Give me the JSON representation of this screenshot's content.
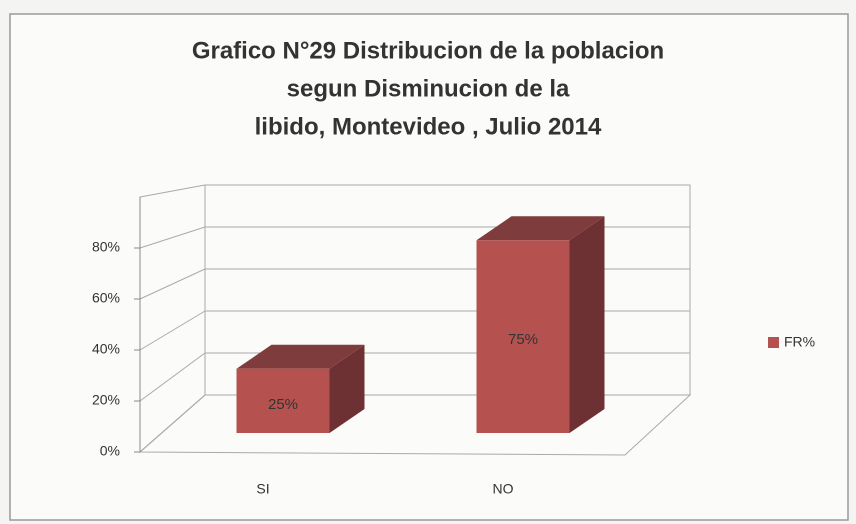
{
  "chart_data": {
    "type": "bar3d",
    "title": [
      "Grafico N°29 Distribucion de la poblacion",
      "segun Disminucion de la",
      "libido, Montevideo , Julio 2014"
    ],
    "categories": [
      "SI",
      "NO"
    ],
    "series": [
      {
        "name": "FR%",
        "color": "#b5524f",
        "values": [
          25,
          75
        ],
        "value_labels": [
          "25%",
          "75%"
        ]
      }
    ],
    "ylim": [
      0,
      100
    ],
    "yticks": [
      {
        "value": 0,
        "label": "0%"
      },
      {
        "value": 20,
        "label": "20%"
      },
      {
        "value": 40,
        "label": "40%"
      },
      {
        "value": 60,
        "label": "60%"
      },
      {
        "value": 80,
        "label": "80%"
      }
    ],
    "grid": true,
    "legend": "right"
  }
}
